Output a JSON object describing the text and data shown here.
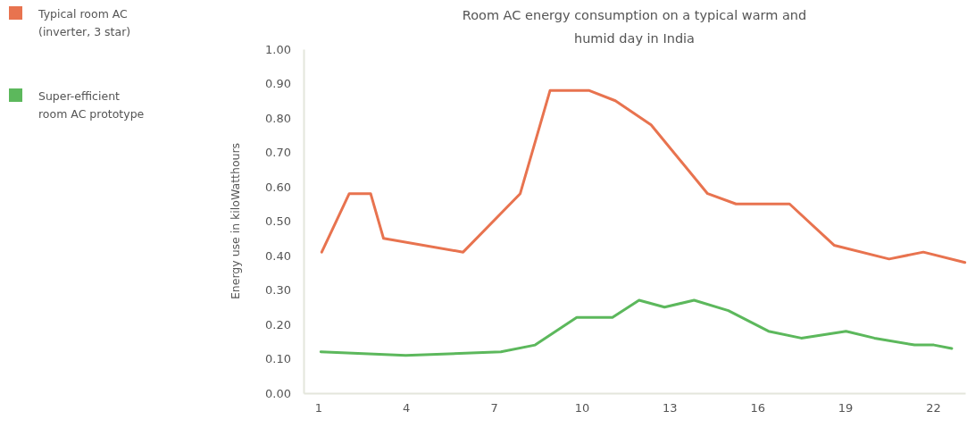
{
  "chart_data": {
    "type": "line",
    "title": "Room AC energy consumption on a typical warm and humid day in India",
    "ylabel": "Energy use in kiloWatthours",
    "xlim": [
      0.5,
      23.1
    ],
    "xticks": [
      1,
      4,
      7,
      10,
      13,
      16,
      19,
      22
    ],
    "ylim": [
      0,
      1
    ],
    "yticks": [
      {
        "value": 0,
        "label": "0.00"
      },
      {
        "value": 0.1,
        "label": "0.10"
      },
      {
        "value": 0.2,
        "label": "0.20"
      },
      {
        "value": 0.3,
        "label": "0.30"
      },
      {
        "value": 0.4,
        "label": "0.40"
      },
      {
        "value": 0.5,
        "label": "0.50"
      },
      {
        "value": 0.6,
        "label": "0.60"
      },
      {
        "value": 0.7,
        "label": "0.70"
      },
      {
        "value": 0.8,
        "label": "0.80"
      },
      {
        "value": 0.9,
        "label": "0.90"
      },
      {
        "value": 1,
        "label": "1.00"
      }
    ],
    "grid": false,
    "legend": "top left",
    "marker": "none",
    "line_style": "solid",
    "series": [
      {
        "name": "Typical room AC (inverter, 3 star)",
        "color": "#e8734f",
        "x": [
          1.12,
          2.06,
          2.79,
          3.23,
          5.95,
          7.9,
          8.92,
          9.63,
          10.24,
          11.15,
          12.37,
          14.3,
          15.27,
          17.1,
          18.62,
          20.5,
          21.67,
          23.09
        ],
        "values": [
          0.41,
          0.58,
          0.58,
          0.45,
          0.41,
          0.58,
          0.88,
          0.88,
          0.88,
          0.85,
          0.78,
          0.58,
          0.55,
          0.55,
          0.43,
          0.39,
          0.41,
          0.38
        ]
      },
      {
        "name": "Super-efficient room AC prototype",
        "color": "#5cb85c",
        "x": [
          1.09,
          3.99,
          7.24,
          8.41,
          9.83,
          11.05,
          11.96,
          12.83,
          13.84,
          15.01,
          16.38,
          17.5,
          19.03,
          20.0,
          21.37,
          22.03,
          22.64
        ],
        "values": [
          0.12,
          0.11,
          0.12,
          0.14,
          0.22,
          0.22,
          0.27,
          0.25,
          0.27,
          0.24,
          0.18,
          0.16,
          0.18,
          0.16,
          0.14,
          0.14,
          0.13
        ]
      }
    ]
  }
}
